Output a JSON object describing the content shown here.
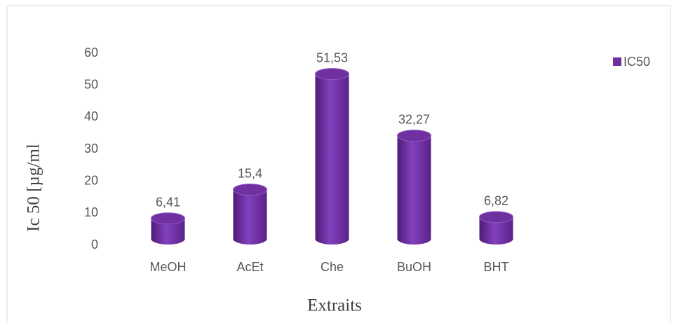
{
  "chart_data": {
    "type": "bar",
    "categories": [
      "MeOH",
      "AcEt",
      "Che",
      "BuOH",
      "BHT"
    ],
    "series": [
      {
        "name": "IC50",
        "color": "#7030a0",
        "values": [
          6.41,
          15.4,
          51.53,
          32.27,
          6.82
        ],
        "value_labels": [
          "6,41",
          "15,4",
          "51,53",
          "32,27",
          "6,82"
        ]
      }
    ],
    "ylim": [
      0,
      60
    ],
    "yticks": [
      0,
      10,
      20,
      30,
      40,
      50,
      60
    ],
    "y_label": "Ic 50 [µg/ml",
    "x_label": "Extraits",
    "legend": "top-right",
    "grid": false
  }
}
